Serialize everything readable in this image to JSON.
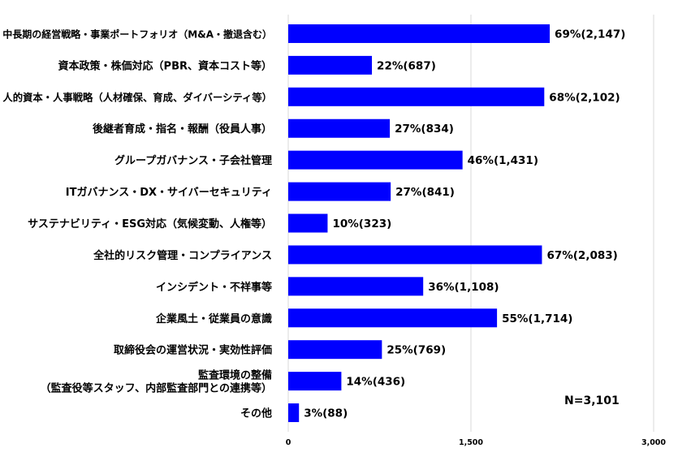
{
  "chart_data": {
    "type": "bar",
    "orientation": "horizontal",
    "title": "",
    "xlabel": "",
    "ylabel": "",
    "xlim": [
      0,
      3000
    ],
    "grid": true,
    "bar_color": "#0000FF",
    "gridline_color": "#d9d9d9",
    "x_ticks": [
      "0",
      "1,500",
      "3,000"
    ],
    "x_tick_values": [
      0,
      1500,
      3000
    ],
    "note": "N=3,101",
    "categories": [
      [
        "中長期の経営戦略・事業ポートフォリオ（M&A・撤退含む）"
      ],
      [
        "資本政策・株価対応（PBR、資本コスト等）"
      ],
      [
        "人的資本・人事戦略（人材確保、育成、ダイバーシティ等）"
      ],
      [
        "後継者育成・指名・報酬（役員人事）"
      ],
      [
        "グループガバナンス・子会社管理"
      ],
      [
        "ITガバナンス・DX・サイバーセキュリティ"
      ],
      [
        "サステナビリティ・ESG対応（気候変動、人権等）"
      ],
      [
        "全社的リスク管理・コンプライアンス"
      ],
      [
        "インシデント・不祥事等"
      ],
      [
        "企業風土・従業員の意識"
      ],
      [
        "取締役会の運営状況・実効性評価"
      ],
      [
        "監査環境の整備",
        "（監査役等スタッフ、内部監査部門との連携等）"
      ],
      [
        "その他"
      ]
    ],
    "values": [
      2147,
      687,
      2102,
      834,
      1431,
      841,
      323,
      2083,
      1108,
      1714,
      769,
      436,
      88
    ],
    "data_labels": [
      "69%(2,147)",
      "22%(687)",
      "68%(2,102)",
      "27%(834)",
      "46%(1,431)",
      "27%(841)",
      "10%(323)",
      "67%(2,083)",
      "36%(1,108)",
      "55%(1,714)",
      "25%(769)",
      "14%(436)",
      "3%(88)"
    ]
  }
}
